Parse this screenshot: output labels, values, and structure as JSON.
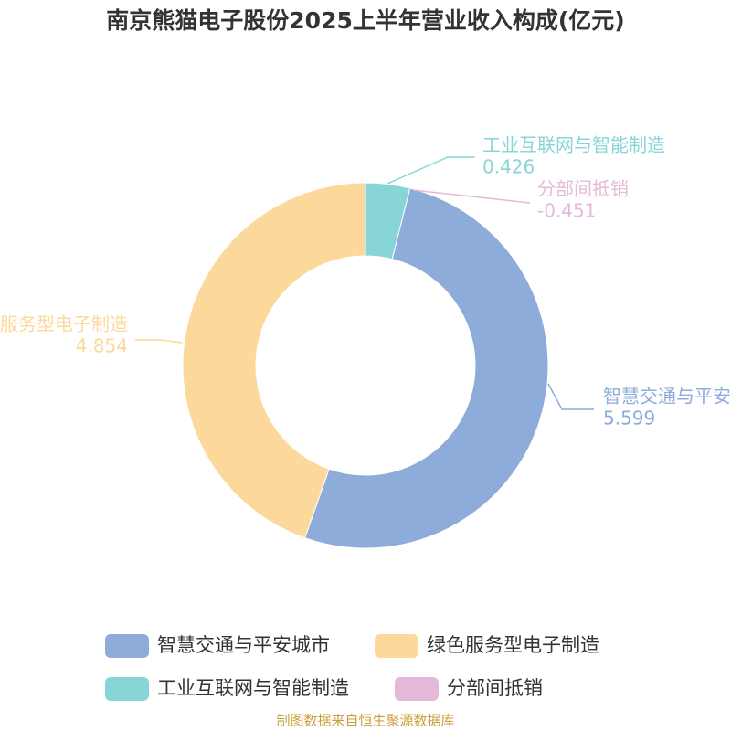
{
  "chart_data": {
    "type": "donut",
    "title": "南京熊猫电子股份2025上半年营业收入构成(亿元)",
    "source": "制图数据来自恒生聚源数据库",
    "categories": [
      "智慧交通与平安城市",
      "绿色服务型电子制造",
      "工业互联网与智能制造",
      "分部间抵销"
    ],
    "values": [
      5.599,
      4.854,
      0.426,
      -0.451
    ],
    "colors": [
      "#8eacda",
      "#fdd89b",
      "#88d5d8",
      "#e5b9d9"
    ]
  }
}
